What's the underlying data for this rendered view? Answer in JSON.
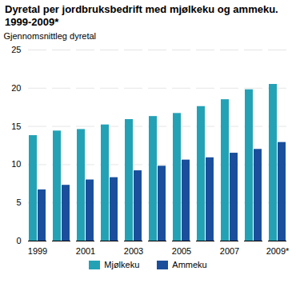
{
  "chart_data": {
    "type": "bar",
    "title": "Dyretal per jordbruksbedrift med mjølkeku og ammeku. 1999-2009*",
    "y_label": "Gjennomsnittleg dyretal",
    "categories": [
      "1999",
      null,
      "2001",
      null,
      "2003",
      null,
      "2005",
      null,
      "2007",
      null,
      "2009*"
    ],
    "series": [
      {
        "name": "Mjølkeku",
        "color": "#23a2b6",
        "values": [
          13.8,
          14.4,
          14.6,
          15.2,
          15.9,
          16.3,
          16.7,
          17.6,
          18.5,
          19.8,
          20.5
        ]
      },
      {
        "name": "Ammeku",
        "color": "#1b4f9b",
        "values": [
          6.7,
          7.3,
          8.0,
          8.3,
          9.2,
          9.8,
          10.6,
          10.9,
          11.5,
          12.0,
          12.9
        ]
      }
    ],
    "ylim": [
      0,
      25
    ],
    "yticks": [
      0,
      5,
      10,
      15,
      20,
      25
    ],
    "grid": true,
    "legend": "bottom"
  }
}
